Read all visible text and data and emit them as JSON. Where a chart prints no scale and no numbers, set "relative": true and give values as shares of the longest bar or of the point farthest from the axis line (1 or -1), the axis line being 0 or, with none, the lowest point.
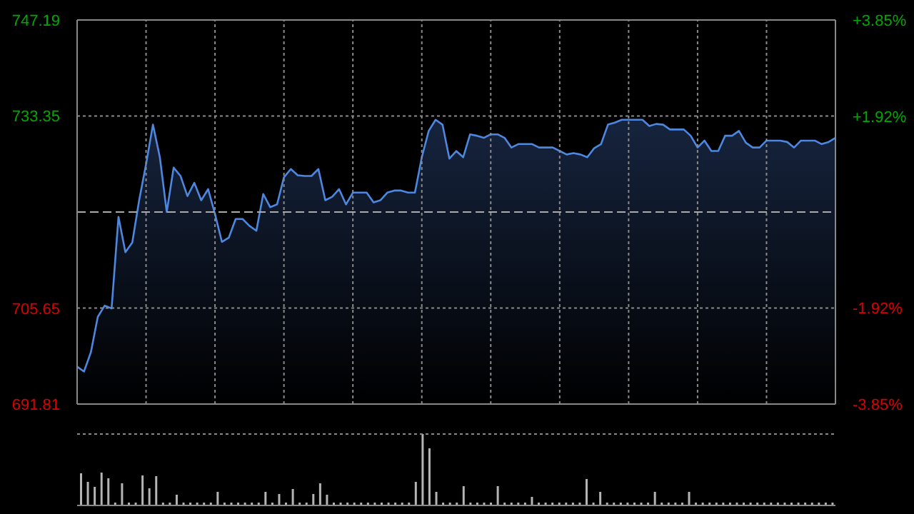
{
  "chart_data": [
    {
      "type": "area",
      "categories": [
        null,
        null,
        null,
        null,
        null,
        null,
        null,
        null,
        null,
        null,
        null,
        null,
        null,
        null,
        null,
        null,
        null,
        null,
        null,
        null,
        null,
        null,
        null,
        null,
        null,
        null,
        null,
        null,
        null,
        null,
        null,
        null,
        null,
        null,
        null,
        null,
        null,
        null,
        null,
        null,
        null,
        null,
        null,
        null,
        null,
        null,
        null,
        null,
        null,
        null,
        null,
        null,
        null,
        null,
        null,
        null,
        null,
        null,
        null,
        null,
        null,
        null,
        null,
        null,
        null,
        null,
        null,
        null,
        null,
        null,
        null,
        null,
        null,
        null,
        null,
        null,
        null,
        null,
        null,
        null,
        null,
        null,
        null,
        null,
        null,
        null,
        null,
        null,
        null,
        null,
        null,
        null,
        null,
        null,
        null,
        null,
        null,
        null,
        null,
        null,
        null,
        null,
        null,
        null,
        null,
        null,
        null,
        null,
        null,
        null,
        null
      ],
      "series": [
        {
          "color": "#4d87e0",
          "values": [
            697.2,
            696.5,
            699.3,
            704.4,
            706.0,
            705.6,
            718.8,
            713.7,
            715.1,
            721.2,
            726.4,
            732.1,
            727.4,
            719.5,
            725.9,
            724.7,
            721.8,
            723.7,
            721.2,
            722.8,
            719.2,
            715.2,
            715.8,
            718.5,
            718.5,
            717.5,
            716.8,
            722.1,
            720.2,
            720.6,
            724.5,
            725.7,
            724.8,
            724.7,
            724.7,
            725.7,
            721.2,
            721.7,
            722.8,
            720.6,
            722.3,
            722.3,
            722.3,
            720.9,
            721.2,
            722.3,
            722.6,
            722.6,
            722.3,
            722.3,
            727.4,
            731.2,
            732.8,
            732.1,
            727.2,
            728.3,
            727.4,
            730.7,
            730.5,
            730.2,
            730.7,
            730.7,
            730.2,
            728.8,
            729.3,
            729.3,
            729.3,
            728.8,
            728.8,
            728.8,
            728.3,
            727.8,
            728.0,
            727.8,
            727.4,
            728.7,
            729.3,
            732.1,
            732.4,
            732.8,
            732.8,
            732.8,
            732.8,
            731.9,
            732.2,
            732.1,
            731.4,
            731.4,
            731.4,
            730.5,
            728.8,
            729.8,
            728.3,
            728.3,
            730.5,
            730.5,
            731.2,
            729.5,
            728.8,
            728.8,
            729.8,
            729.8,
            729.8,
            729.6,
            728.8,
            729.8,
            729.8,
            729.8,
            729.3,
            729.6,
            730.2
          ]
        }
      ],
      "ylim": [
        691.81,
        747.19
      ],
      "yticks": [
        691.81,
        705.65,
        733.35,
        747.19
      ],
      "y2lim": [
        -3.85,
        3.85
      ],
      "y2ticks": [
        {
          "value": -3.85,
          "label": "-3.85%"
        },
        {
          "value": -1.92,
          "label": "-1.92%"
        },
        {
          "value": 1.92,
          "label": "+1.92%"
        },
        {
          "value": 3.85,
          "label": "+3.85%"
        }
      ],
      "ref_lines": [
        {
          "axis": "y",
          "value": 719.5
        }
      ],
      "grid": true
    },
    {
      "type": "bar",
      "relative": true,
      "categories": [
        null,
        null,
        null,
        null,
        null,
        null,
        null,
        null,
        null,
        null,
        null,
        null,
        null,
        null,
        null,
        null,
        null,
        null,
        null,
        null,
        null,
        null,
        null,
        null,
        null,
        null,
        null,
        null,
        null,
        null,
        null,
        null,
        null,
        null,
        null,
        null,
        null,
        null,
        null,
        null,
        null,
        null,
        null,
        null,
        null,
        null,
        null,
        null,
        null,
        null,
        null,
        null,
        null,
        null,
        null,
        null,
        null,
        null,
        null,
        null,
        null,
        null,
        null,
        null,
        null,
        null,
        null,
        null,
        null,
        null,
        null,
        null,
        null,
        null,
        null,
        null,
        null,
        null,
        null,
        null,
        null,
        null,
        null,
        null,
        null,
        null,
        null,
        null,
        null,
        null,
        null,
        null,
        null,
        null,
        null,
        null,
        null,
        null,
        null,
        null,
        null,
        null,
        null,
        null,
        null,
        null,
        null,
        null,
        null,
        null,
        null
      ],
      "values": [
        0.45,
        0.33,
        0.26,
        0.46,
        0.38,
        0.04,
        0.31,
        0.04,
        0.04,
        0.42,
        0.24,
        0.41,
        0.04,
        0.04,
        0.15,
        0.04,
        0.04,
        0.04,
        0.04,
        0.04,
        0.19,
        0.04,
        0.04,
        0.04,
        0.04,
        0.04,
        0.04,
        0.19,
        0.04,
        0.16,
        0.04,
        0.23,
        0.04,
        0.04,
        0.16,
        0.31,
        0.15,
        0.04,
        0.04,
        0.04,
        0.04,
        0.04,
        0.04,
        0.04,
        0.04,
        0.04,
        0.04,
        0.04,
        0.04,
        0.33,
        1,
        0.8,
        0.19,
        0.04,
        0.04,
        0.04,
        0.27,
        0.04,
        0.04,
        0.04,
        0.04,
        0.27,
        0.04,
        0.04,
        0.04,
        0.04,
        0.12,
        0.04,
        0.04,
        0.04,
        0.04,
        0.04,
        0.04,
        0.04,
        0.37,
        0.04,
        0.19,
        0.04,
        0.04,
        0.04,
        0.04,
        0.04,
        0.04,
        0.04,
        0.19,
        0.04,
        0.04,
        0.04,
        0.04,
        0.19,
        0.04,
        0.04,
        0.04,
        0.04,
        0.04,
        0.04,
        0.04,
        0.04,
        0.04,
        0.04,
        0.04,
        0.04,
        0.04,
        0.04,
        0.04,
        0.04,
        0.04,
        0.04,
        0.04,
        0.04,
        0.04
      ],
      "color": "#b4b4b4"
    }
  ]
}
